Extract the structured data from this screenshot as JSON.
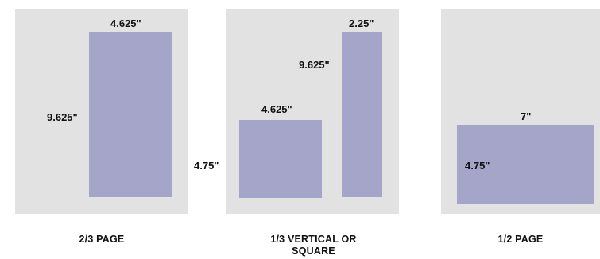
{
  "colors": {
    "page": "#e2e2e2",
    "ad_block": "#a5a5ca",
    "text": "#111111"
  },
  "panels": [
    {
      "caption": "2/3 PAGE",
      "blocks": [
        {
          "width_label": "4.625\"",
          "height_label": "9.625\""
        }
      ]
    },
    {
      "caption_lines": [
        "1/3 VERTICAL OR",
        "SQUARE"
      ],
      "blocks": [
        {
          "width_label": "4.625\"",
          "height_label": "4.75\""
        },
        {
          "width_label": "2.25\"",
          "height_label": "9.625\""
        }
      ]
    },
    {
      "caption": "1/2 PAGE",
      "blocks": [
        {
          "width_label": "7\"",
          "height_label": "4.75\""
        }
      ]
    }
  ]
}
